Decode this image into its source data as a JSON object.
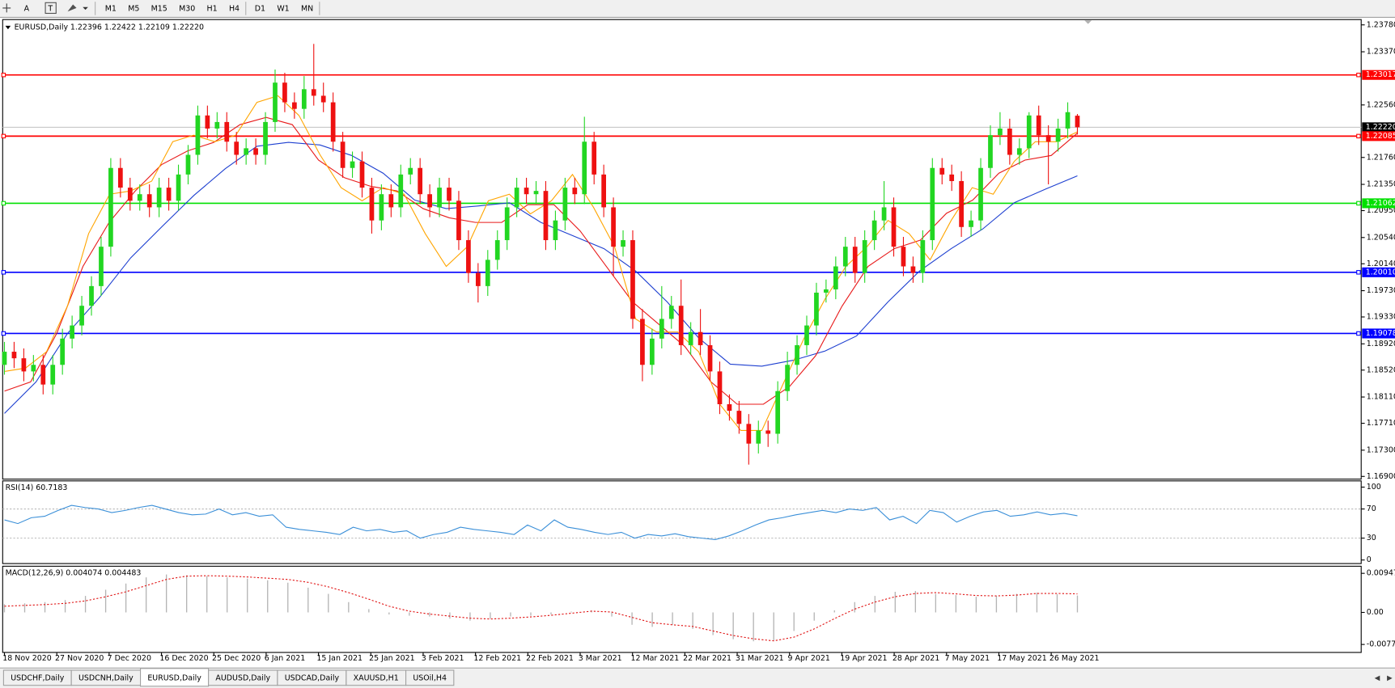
{
  "toolbar": {
    "tools": [
      "A",
      "T"
    ],
    "timeframes": [
      "M1",
      "M5",
      "M15",
      "M30",
      "H1",
      "H4",
      "D1",
      "W1",
      "MN"
    ]
  },
  "chart_data": [
    {
      "type": "candlestick",
      "symbol": "EURUSD,Daily",
      "ohlc_text": "1.22396 1.22422 1.22109 1.22220",
      "up_color": "#22d622",
      "down_color": "#ee1111",
      "ylim": [
        1.16859,
        1.23861
      ],
      "yticks": [
        {
          "value": 1.2378,
          "label": "1.23780"
        },
        {
          "value": 1.2337,
          "label": "1.23370"
        },
        {
          "value": 1.2256,
          "label": "1.22560"
        },
        {
          "value": 1.2176,
          "label": "1.21760"
        },
        {
          "value": 1.2135,
          "label": "1.21350"
        },
        {
          "value": 1.2095,
          "label": "1.20950"
        },
        {
          "value": 1.2054,
          "label": "1.20540"
        },
        {
          "value": 1.2014,
          "label": "1.20140"
        },
        {
          "value": 1.1973,
          "label": "1.19730"
        },
        {
          "value": 1.1933,
          "label": "1.19330"
        },
        {
          "value": 1.1892,
          "label": "1.18920"
        },
        {
          "value": 1.1852,
          "label": "1.18520"
        },
        {
          "value": 1.1811,
          "label": "1.18110"
        },
        {
          "value": 1.1771,
          "label": "1.17710"
        },
        {
          "value": 1.173,
          "label": "1.17300"
        },
        {
          "value": 1.169,
          "label": "1.16900"
        }
      ],
      "levels": [
        {
          "value": 1.23017,
          "color": "#ff0000"
        },
        {
          "value": 1.22085,
          "color": "#ff0000"
        },
        {
          "value": 1.21062,
          "color": "#00e000"
        },
        {
          "value": 1.2001,
          "label": "1.20010",
          "color": "#0000ff"
        },
        {
          "value": 1.19078,
          "color": "#0000ff"
        }
      ],
      "current_price": {
        "value": 1.2222,
        "label": "1.22220"
      },
      "x_labels": [
        "18 Nov 2020",
        "27 Nov 2020",
        "7 Dec 2020",
        "16 Dec 2020",
        "25 Dec 2020",
        "6 Jan 2021",
        "15 Jan 2021",
        "25 Jan 2021",
        "3 Feb 2021",
        "12 Feb 2021",
        "22 Feb 2021",
        "3 Mar 2021",
        "12 Mar 2021",
        "22 Mar 2021",
        "31 Mar 2021",
        "9 Apr 2021",
        "19 Apr 2021",
        "28 Apr 2021",
        "7 May 2021",
        "17 May 2021",
        "26 May 2021"
      ],
      "ohlc": [
        [
          1.186,
          1.1895,
          1.1845,
          1.188
        ],
        [
          1.188,
          1.1895,
          1.1855,
          1.187
        ],
        [
          1.187,
          1.1885,
          1.1835,
          1.185
        ],
        [
          1.185,
          1.1875,
          1.1835,
          1.186
        ],
        [
          1.186,
          1.1875,
          1.1815,
          1.183
        ],
        [
          1.183,
          1.1875,
          1.1815,
          1.186
        ],
        [
          1.186,
          1.1915,
          1.1845,
          1.19
        ],
        [
          1.19,
          1.1935,
          1.1885,
          1.192
        ],
        [
          1.192,
          1.1965,
          1.1905,
          1.195
        ],
        [
          1.195,
          1.1995,
          1.1935,
          1.198
        ],
        [
          1.198,
          1.2055,
          1.1965,
          1.204
        ],
        [
          1.204,
          1.2175,
          1.2025,
          1.216
        ],
        [
          1.216,
          1.2175,
          1.2115,
          1.213
        ],
        [
          1.213,
          1.2145,
          1.2095,
          1.211
        ],
        [
          1.211,
          1.2135,
          1.2095,
          1.212
        ],
        [
          1.212,
          1.2135,
          1.2085,
          1.21
        ],
        [
          1.21,
          1.2145,
          1.2085,
          1.213
        ],
        [
          1.213,
          1.2145,
          1.2095,
          1.211
        ],
        [
          1.211,
          1.2165,
          1.2095,
          1.215
        ],
        [
          1.215,
          1.2195,
          1.2135,
          1.218
        ],
        [
          1.218,
          1.2255,
          1.2165,
          1.224
        ],
        [
          1.224,
          1.2255,
          1.2205,
          1.222
        ],
        [
          1.222,
          1.2245,
          1.2205,
          1.223
        ],
        [
          1.223,
          1.2245,
          1.2185,
          1.22
        ],
        [
          1.22,
          1.2215,
          1.2165,
          1.218
        ],
        [
          1.218,
          1.2205,
          1.2165,
          1.219
        ],
        [
          1.219,
          1.2205,
          1.2165,
          1.218
        ],
        [
          1.218,
          1.2245,
          1.2165,
          1.223
        ],
        [
          1.223,
          1.231,
          1.2215,
          1.229
        ],
        [
          1.229,
          1.2305,
          1.2245,
          1.226
        ],
        [
          1.226,
          1.2275,
          1.2235,
          1.225
        ],
        [
          1.225,
          1.23,
          1.2235,
          1.228
        ],
        [
          1.228,
          1.2349,
          1.2255,
          1.227
        ],
        [
          1.227,
          1.229,
          1.2245,
          1.226
        ],
        [
          1.226,
          1.2275,
          1.2185,
          1.22
        ],
        [
          1.22,
          1.2215,
          1.2145,
          1.216
        ],
        [
          1.216,
          1.2185,
          1.2145,
          1.217
        ],
        [
          1.217,
          1.2185,
          1.2115,
          1.213
        ],
        [
          1.213,
          1.2145,
          1.206,
          1.208
        ],
        [
          1.208,
          1.2135,
          1.2065,
          1.212
        ],
        [
          1.212,
          1.2135,
          1.2085,
          1.21
        ],
        [
          1.21,
          1.2165,
          1.2085,
          1.215
        ],
        [
          1.215,
          1.2175,
          1.2135,
          1.216
        ],
        [
          1.216,
          1.2175,
          1.2105,
          1.212
        ],
        [
          1.212,
          1.2135,
          1.2085,
          1.21
        ],
        [
          1.21,
          1.2145,
          1.2085,
          1.213
        ],
        [
          1.213,
          1.2145,
          1.2095,
          1.211
        ],
        [
          1.211,
          1.2125,
          1.2035,
          1.205
        ],
        [
          1.205,
          1.2065,
          1.1985,
          1.2
        ],
        [
          1.2,
          1.2015,
          1.1955,
          1.198
        ],
        [
          1.198,
          1.2035,
          1.1965,
          1.202
        ],
        [
          1.202,
          1.2065,
          1.2005,
          1.205
        ],
        [
          1.205,
          1.2115,
          1.2035,
          1.21
        ],
        [
          1.21,
          1.2145,
          1.2085,
          1.213
        ],
        [
          1.213,
          1.2145,
          1.2105,
          1.212
        ],
        [
          1.212,
          1.214,
          1.2105,
          1.2125
        ],
        [
          1.2125,
          1.214,
          1.2035,
          1.205
        ],
        [
          1.205,
          1.2095,
          1.2035,
          1.208
        ],
        [
          1.208,
          1.2145,
          1.2065,
          1.213
        ],
        [
          1.213,
          1.2145,
          1.2105,
          1.212
        ],
        [
          1.212,
          1.2238,
          1.2105,
          1.22
        ],
        [
          1.22,
          1.2215,
          1.2135,
          1.215
        ],
        [
          1.215,
          1.2165,
          1.2085,
          1.21
        ],
        [
          1.21,
          1.2115,
          1.1995,
          1.204
        ],
        [
          1.204,
          1.2065,
          1.2025,
          1.205
        ],
        [
          1.205,
          1.2065,
          1.1915,
          1.193
        ],
        [
          1.193,
          1.1945,
          1.1835,
          1.186
        ],
        [
          1.186,
          1.1915,
          1.1845,
          1.19
        ],
        [
          1.19,
          1.198,
          1.1885,
          1.193
        ],
        [
          1.193,
          1.1965,
          1.1915,
          1.195
        ],
        [
          1.195,
          1.199,
          1.1875,
          1.189
        ],
        [
          1.189,
          1.1925,
          1.1875,
          1.191
        ],
        [
          1.191,
          1.1945,
          1.1875,
          1.189
        ],
        [
          1.189,
          1.1905,
          1.1835,
          1.185
        ],
        [
          1.185,
          1.1865,
          1.1785,
          1.18
        ],
        [
          1.18,
          1.1815,
          1.1775,
          1.179
        ],
        [
          1.179,
          1.1805,
          1.1755,
          1.177
        ],
        [
          1.177,
          1.1785,
          1.1708,
          1.174
        ],
        [
          1.174,
          1.1775,
          1.1725,
          1.176
        ],
        [
          1.176,
          1.1775,
          1.1735,
          1.1755
        ],
        [
          1.1755,
          1.1835,
          1.174,
          1.182
        ],
        [
          1.182,
          1.188,
          1.1805,
          1.186
        ],
        [
          1.186,
          1.1905,
          1.1845,
          1.189
        ],
        [
          1.189,
          1.1935,
          1.1875,
          1.192
        ],
        [
          1.192,
          1.1985,
          1.1905,
          1.197
        ],
        [
          1.197,
          1.199,
          1.1955,
          1.1975
        ],
        [
          1.1975,
          1.2025,
          1.196,
          1.201
        ],
        [
          1.201,
          1.2055,
          1.1995,
          1.204
        ],
        [
          1.204,
          1.2055,
          1.1985,
          1.2
        ],
        [
          1.2,
          1.2065,
          1.1985,
          1.205
        ],
        [
          1.205,
          1.2095,
          1.2035,
          1.208
        ],
        [
          1.208,
          1.214,
          1.2065,
          1.21
        ],
        [
          1.21,
          1.2115,
          1.2025,
          1.204
        ],
        [
          1.204,
          1.2055,
          1.1995,
          1.201
        ],
        [
          1.201,
          1.2025,
          1.1985,
          1.2
        ],
        [
          1.2,
          1.2065,
          1.1985,
          1.205
        ],
        [
          1.205,
          1.2175,
          1.2035,
          1.216
        ],
        [
          1.216,
          1.2175,
          1.2135,
          1.215
        ],
        [
          1.215,
          1.2165,
          1.2125,
          1.214
        ],
        [
          1.214,
          1.2155,
          1.2055,
          1.207
        ],
        [
          1.207,
          1.2095,
          1.2055,
          1.208
        ],
        [
          1.208,
          1.2175,
          1.2065,
          1.216
        ],
        [
          1.216,
          1.2225,
          1.2145,
          1.221
        ],
        [
          1.221,
          1.2245,
          1.2195,
          1.222
        ],
        [
          1.222,
          1.2235,
          1.2165,
          1.218
        ],
        [
          1.218,
          1.2205,
          1.2165,
          1.219
        ],
        [
          1.219,
          1.2245,
          1.2175,
          1.224
        ],
        [
          1.224,
          1.2255,
          1.2195,
          1.221
        ],
        [
          1.221,
          1.2225,
          1.2135,
          1.22
        ],
        [
          1.22,
          1.2235,
          1.2185,
          1.222
        ],
        [
          1.222,
          1.226,
          1.2205,
          1.2245
        ],
        [
          1.22396,
          1.22422,
          1.22109,
          1.2222
        ]
      ],
      "moving_averages": [
        {
          "color": "#1d3fd0",
          "values": [
            1.1786,
            1.1834,
            1.1908,
            1.1962,
            1.2023,
            1.2071,
            1.2118,
            1.2159,
            1.2193,
            1.2199,
            1.2195,
            1.2179,
            1.2152,
            1.2111,
            1.2098,
            1.2102,
            1.2107,
            1.2077,
            1.2057,
            1.2037,
            1.2003,
            1.1956,
            1.1901,
            1.1861,
            1.1858,
            1.1867,
            1.1881,
            1.1904,
            1.1956,
            1.2003,
            1.2037,
            1.2067,
            1.2107,
            1.2128,
            1.2148
          ]
        },
        {
          "color": "#e81a1a",
          "values": [
            1.182,
            1.1834,
            1.1908,
            1.201,
            1.2077,
            1.2125,
            1.2165,
            1.2186,
            1.2199,
            1.2226,
            1.2237,
            1.2226,
            1.2172,
            1.2145,
            1.2132,
            1.2125,
            1.2098,
            1.2084,
            1.2077,
            1.2077,
            1.2104,
            1.2104,
            1.2064,
            1.201,
            1.1956,
            1.1922,
            1.1888,
            1.1834,
            1.18,
            1.18,
            1.1827,
            1.1874,
            1.1949,
            1.201,
            1.2037,
            1.205,
            1.2091,
            1.2111,
            1.2152,
            1.2172,
            1.2179,
            1.2213
          ]
        },
        {
          "color": "#ffa500",
          "values": [
            1.185,
            1.1855,
            1.188,
            1.195,
            1.206,
            1.212,
            1.2125,
            1.214,
            1.22,
            1.221,
            1.22,
            1.221,
            1.226,
            1.227,
            1.224,
            1.218,
            1.213,
            1.211,
            1.213,
            1.212,
            1.206,
            1.201,
            1.204,
            1.211,
            1.212,
            1.209,
            1.211,
            1.215,
            1.21,
            1.204,
            1.193,
            1.191,
            1.191,
            1.188,
            1.18,
            1.176,
            1.176,
            1.183,
            1.19,
            1.196,
            1.201,
            1.204,
            1.208,
            1.206,
            1.202,
            1.208,
            1.213,
            1.212,
            1.217,
            1.22,
            1.22,
            1.2215
          ]
        }
      ]
    },
    {
      "type": "line",
      "title": "RSI(14) 60.7183",
      "ylim": [
        0,
        100
      ],
      "yticks": [
        100,
        70,
        30,
        0
      ],
      "levels": [
        70,
        30
      ],
      "color": "#3a8fd8",
      "values": [
        55,
        50,
        58,
        60,
        68,
        75,
        72,
        70,
        65,
        68,
        72,
        75,
        70,
        65,
        62,
        63,
        70,
        62,
        65,
        60,
        62,
        45,
        42,
        40,
        38,
        35,
        45,
        40,
        42,
        38,
        40,
        30,
        35,
        38,
        45,
        42,
        40,
        38,
        35,
        48,
        40,
        55,
        45,
        42,
        38,
        35,
        38,
        30,
        35,
        33,
        36,
        32,
        30,
        28,
        33,
        40,
        48,
        55,
        58,
        62,
        65,
        68,
        65,
        70,
        68,
        72,
        55,
        60,
        50,
        68,
        65,
        52,
        60,
        66,
        68,
        60,
        62,
        66,
        62,
        64,
        60.7183
      ]
    },
    {
      "type": "bar",
      "title": "MACD(12,26,9) 0.004074 0.004483",
      "ylim": [
        -0.00777,
        0.009478
      ],
      "yticks": [
        0.009478,
        {
          "value": 0,
          "label": "0.00"
        },
        -0.00777
      ],
      "color": "#b4b4b4",
      "signal_color": "#e01010",
      "values": [
        0.002,
        0.0022,
        0.0025,
        0.003,
        0.004,
        0.0055,
        0.007,
        0.0085,
        0.0092,
        0.009,
        0.0088,
        0.0085,
        0.0082,
        0.0078,
        0.0072,
        0.006,
        0.0045,
        0.0025,
        0.0008,
        -0.0005,
        -0.0008,
        -0.001,
        -0.0015,
        -0.002,
        -0.0015,
        -0.001,
        -0.0008,
        -0.0005,
        0.0002,
        0.0005,
        -0.001,
        -0.003,
        -0.0035,
        -0.003,
        -0.004,
        -0.0055,
        -0.0065,
        -0.007,
        -0.0068,
        -0.0045,
        -0.002,
        0.0005,
        0.0025,
        0.004,
        0.005,
        0.0052,
        0.0045,
        0.0042,
        0.0038,
        0.004,
        0.0045,
        0.0048,
        0.0044,
        0.0041
      ],
      "signal": [
        0.0015,
        0.0017,
        0.0019,
        0.0022,
        0.0028,
        0.0038,
        0.005,
        0.0065,
        0.008,
        0.0088,
        0.0089,
        0.0088,
        0.0086,
        0.0083,
        0.008,
        0.0073,
        0.0062,
        0.0048,
        0.0032,
        0.0015,
        0.0003,
        -0.0004,
        -0.0009,
        -0.0014,
        -0.0016,
        -0.0014,
        -0.0011,
        -0.0007,
        -0.0002,
        0.0003,
        0.0001,
        -0.0012,
        -0.0025,
        -0.003,
        -0.0034,
        -0.0045,
        -0.0056,
        -0.0064,
        -0.0069,
        -0.006,
        -0.004,
        -0.0015,
        0.0008,
        0.0025,
        0.0038,
        0.0046,
        0.0048,
        0.0045,
        0.0041,
        0.004,
        0.0042,
        0.0046,
        0.0046,
        0.0045
      ]
    }
  ],
  "tabs": {
    "items": [
      "USDCHF,Daily",
      "USDCNH,Daily",
      "EURUSD,Daily",
      "AUDUSD,Daily",
      "USDCAD,Daily",
      "XAUUSD,H1",
      "USOil,H4"
    ],
    "active": 2
  }
}
